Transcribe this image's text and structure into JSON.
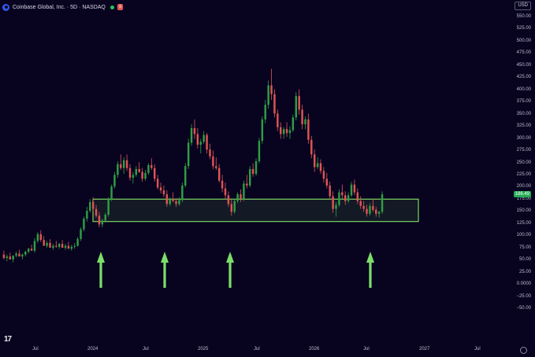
{
  "header": {
    "title": "Coinbase Global, Inc. · 5D · NASDAQ",
    "badge": "≡",
    "status_color": "#22c55e"
  },
  "currency_button": "USD",
  "watermark_icon": "tradingview-logo-icon",
  "settings_icon": "gear-icon",
  "chart_data": {
    "type": "candlestick",
    "ylim": [
      -50,
      560
    ],
    "y_ticks": [
      "550.00",
      "525.00",
      "500.00",
      "475.00",
      "450.00",
      "425.00",
      "400.00",
      "375.00",
      "350.00",
      "325.00",
      "300.00",
      "275.00",
      "250.00",
      "225.00",
      "200.00",
      "175.00",
      "150.00",
      "125.00",
      "100.00",
      "75.00",
      "50.00",
      "25.00",
      "0.0000",
      "−25.00",
      "−50.00"
    ],
    "x_ticks": [
      "Jul",
      "2024",
      "Jul",
      "2025",
      "Jul",
      "2026",
      "Jul",
      "2027",
      "Jul"
    ],
    "last_price": "186.49",
    "up_color": "#2ea043",
    "down_color": "#e05555",
    "candles": [
      [
        62,
        70,
        52,
        55
      ],
      [
        55,
        62,
        48,
        58
      ],
      [
        58,
        66,
        54,
        52
      ],
      [
        52,
        58,
        46,
        60
      ],
      [
        60,
        68,
        56,
        64
      ],
      [
        64,
        72,
        60,
        58
      ],
      [
        58,
        64,
        52,
        62
      ],
      [
        62,
        70,
        58,
        68
      ],
      [
        68,
        76,
        64,
        74
      ],
      [
        74,
        82,
        70,
        70
      ],
      [
        70,
        96,
        66,
        90
      ],
      [
        90,
        108,
        86,
        104
      ],
      [
        104,
        112,
        88,
        92
      ],
      [
        92,
        100,
        84,
        80
      ],
      [
        80,
        90,
        76,
        86
      ],
      [
        86,
        94,
        82,
        76
      ],
      [
        76,
        84,
        72,
        80
      ],
      [
        80,
        90,
        76,
        78
      ],
      [
        78,
        86,
        74,
        84
      ],
      [
        84,
        92,
        80,
        76
      ],
      [
        76,
        84,
        72,
        80
      ],
      [
        80,
        88,
        76,
        74
      ],
      [
        74,
        82,
        70,
        78
      ],
      [
        78,
        86,
        74,
        80
      ],
      [
        80,
        98,
        78,
        94
      ],
      [
        94,
        118,
        90,
        114
      ],
      [
        114,
        140,
        110,
        136
      ],
      [
        136,
        160,
        130,
        152
      ],
      [
        152,
        176,
        148,
        170
      ],
      [
        170,
        180,
        150,
        156
      ],
      [
        156,
        164,
        138,
        142
      ],
      [
        142,
        150,
        118,
        124
      ],
      [
        124,
        136,
        118,
        132
      ],
      [
        132,
        148,
        128,
        144
      ],
      [
        144,
        180,
        140,
        176
      ],
      [
        176,
        206,
        172,
        202
      ],
      [
        202,
        232,
        198,
        226
      ],
      [
        226,
        254,
        220,
        248
      ],
      [
        248,
        268,
        236,
        240
      ],
      [
        240,
        262,
        228,
        256
      ],
      [
        256,
        268,
        234,
        240
      ],
      [
        240,
        248,
        214,
        220
      ],
      [
        220,
        232,
        208,
        226
      ],
      [
        226,
        244,
        222,
        238
      ],
      [
        238,
        252,
        230,
        232
      ],
      [
        232,
        240,
        212,
        218
      ],
      [
        218,
        236,
        214,
        230
      ],
      [
        230,
        250,
        226,
        246
      ],
      [
        246,
        260,
        236,
        240
      ],
      [
        240,
        248,
        212,
        218
      ],
      [
        218,
        226,
        196,
        200
      ],
      [
        200,
        210,
        188,
        194
      ],
      [
        194,
        204,
        180,
        186
      ],
      [
        186,
        194,
        160,
        166
      ],
      [
        166,
        180,
        162,
        176
      ],
      [
        176,
        190,
        170,
        172
      ],
      [
        172,
        178,
        160,
        166
      ],
      [
        166,
        180,
        162,
        174
      ],
      [
        174,
        210,
        170,
        204
      ],
      [
        204,
        250,
        200,
        244
      ],
      [
        244,
        300,
        238,
        292
      ],
      [
        292,
        330,
        286,
        322
      ],
      [
        322,
        340,
        300,
        310
      ],
      [
        310,
        322,
        280,
        288
      ],
      [
        288,
        300,
        270,
        294
      ],
      [
        294,
        316,
        290,
        308
      ],
      [
        308,
        312,
        270,
        278
      ],
      [
        278,
        290,
        258,
        264
      ],
      [
        264,
        276,
        238,
        244
      ],
      [
        244,
        262,
        236,
        240
      ],
      [
        240,
        248,
        210,
        214
      ],
      [
        214,
        226,
        190,
        198
      ],
      [
        198,
        210,
        176,
        184
      ],
      [
        184,
        192,
        160,
        166
      ],
      [
        166,
        176,
        142,
        150
      ],
      [
        150,
        176,
        146,
        172
      ],
      [
        172,
        190,
        168,
        186
      ],
      [
        186,
        196,
        170,
        176
      ],
      [
        176,
        214,
        172,
        208
      ],
      [
        208,
        226,
        198,
        204
      ],
      [
        204,
        244,
        200,
        238
      ],
      [
        238,
        250,
        222,
        228
      ],
      [
        228,
        260,
        224,
        254
      ],
      [
        254,
        302,
        250,
        296
      ],
      [
        296,
        346,
        290,
        340
      ],
      [
        340,
        380,
        332,
        370
      ],
      [
        370,
        420,
        362,
        410
      ],
      [
        410,
        444,
        380,
        392
      ],
      [
        392,
        402,
        344,
        352
      ],
      [
        352,
        360,
        316,
        324
      ],
      [
        324,
        334,
        300,
        310
      ],
      [
        310,
        324,
        300,
        320
      ],
      [
        320,
        334,
        304,
        312
      ],
      [
        312,
        326,
        300,
        318
      ],
      [
        318,
        350,
        314,
        344
      ],
      [
        344,
        396,
        338,
        388
      ],
      [
        388,
        402,
        350,
        360
      ],
      [
        360,
        370,
        320,
        330
      ],
      [
        330,
        346,
        320,
        340
      ],
      [
        340,
        352,
        290,
        298
      ],
      [
        298,
        306,
        260,
        268
      ],
      [
        268,
        278,
        232,
        242
      ],
      [
        242,
        262,
        238,
        250
      ],
      [
        250,
        258,
        228,
        234
      ],
      [
        234,
        242,
        210,
        218
      ],
      [
        218,
        230,
        198,
        204
      ],
      [
        204,
        212,
        176,
        182
      ],
      [
        182,
        192,
        148,
        156
      ],
      [
        156,
        170,
        140,
        164
      ],
      [
        164,
        196,
        160,
        190
      ],
      [
        190,
        206,
        176,
        184
      ],
      [
        184,
        192,
        164,
        172
      ],
      [
        172,
        190,
        168,
        184
      ],
      [
        184,
        212,
        180,
        206
      ],
      [
        206,
        216,
        184,
        190
      ],
      [
        190,
        198,
        166,
        172
      ],
      [
        172,
        182,
        156,
        162
      ],
      [
        162,
        172,
        150,
        156
      ],
      [
        156,
        164,
        140,
        146
      ],
      [
        146,
        168,
        142,
        162
      ],
      [
        162,
        176,
        150,
        154
      ],
      [
        154,
        160,
        140,
        146
      ],
      [
        146,
        152,
        138,
        150
      ],
      [
        150,
        192,
        146,
        186
      ]
    ],
    "annotations": {
      "support_zone": {
        "top": 176,
        "bottom": 130,
        "color": "#7dd35f"
      },
      "arrows": [
        "arrow-up",
        "arrow-up",
        "arrow-up",
        "arrow-up"
      ],
      "arrow_color": "#7dde6a"
    }
  }
}
